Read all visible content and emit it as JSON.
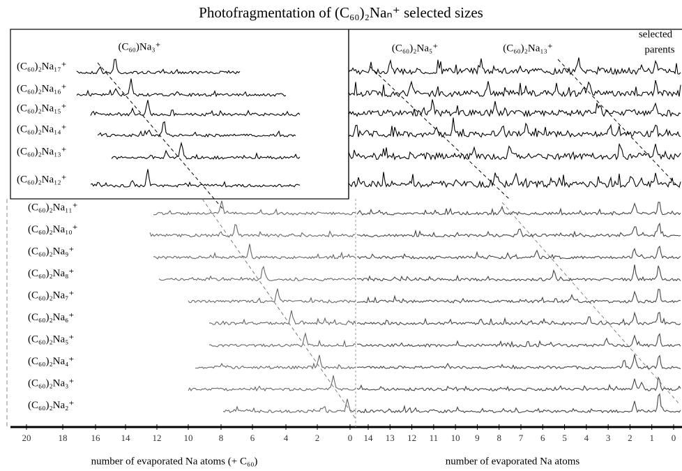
{
  "title": "Photofragmentation of (C₆₀)₂Naₙ⁺ selected sizes",
  "top_left": {
    "annotation": "(C₆₀)Na₃⁺",
    "rows": [
      "(C₆₀)₂Na₁₇⁺",
      "(C₆₀)₂Na₁₆⁺",
      "(C₆₀)₂Na₁₅⁺",
      "(C₆₀)₂Na₁₄⁺",
      "(C₆₀)₂Na₁₃⁺",
      "(C₆₀)₂Na₁₂⁺"
    ]
  },
  "top_right": {
    "annotations": [
      "(C₆₀)₂Na₅⁺",
      "(C₆₀)₂Na₁₃⁺"
    ],
    "corner_label": [
      "selected",
      "parents"
    ]
  },
  "lower_rows": [
    "(C₆₀)₂Na₁₁⁺",
    "(C₆₀)₂Na₁₀⁺",
    "(C₆₀)₂Na₉⁺",
    "(C₆₀)₂Na₈⁺",
    "(C₆₀)₂Na₇⁺",
    "(C₆₀)₂Na₆⁺",
    "(C₆₀)₂Na₅⁺",
    "(C₆₀)₂Na₄⁺",
    "(C₆₀)₂Na₃⁺",
    "(C₆₀)₂Na₂⁺"
  ],
  "left_axis": {
    "title": "number of evaporated Na atoms (+ C₆₀)",
    "ticks": [
      20,
      18,
      16,
      14,
      12,
      10,
      8,
      6,
      4,
      2,
      0
    ]
  },
  "right_axis": {
    "title": "number of evaporated Na atoms",
    "ticks": [
      14,
      13,
      12,
      11,
      10,
      9,
      8,
      7,
      6,
      5,
      4,
      3,
      2,
      1,
      0
    ]
  }
}
